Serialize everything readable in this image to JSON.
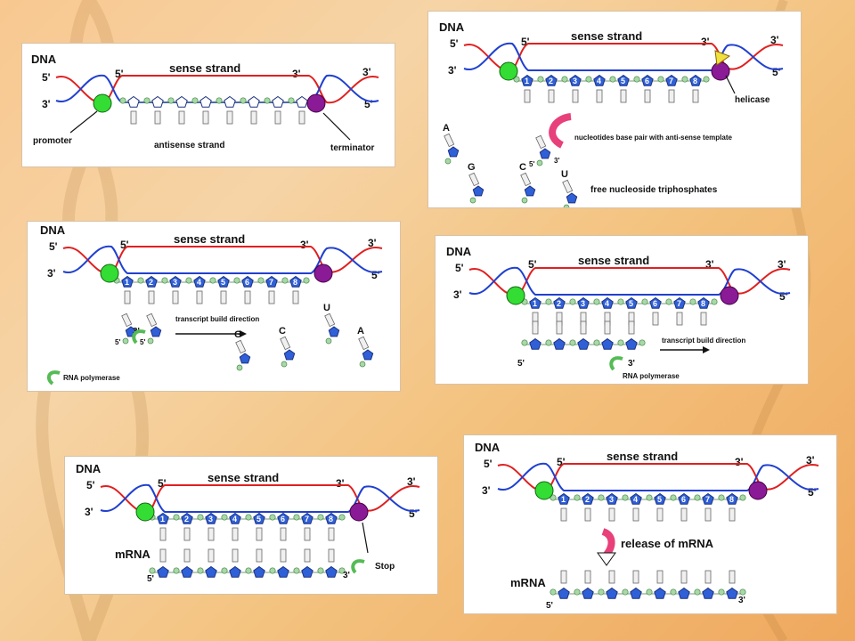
{
  "colors": {
    "sense": "#e02020",
    "antisense": "#2040d0",
    "promoter": "#33dd33",
    "terminator": "#8a1a96",
    "nucleotide": "#3060d8",
    "phosphate": "#a8d8a8",
    "base": "#f0f0f0",
    "polymerase": "#55bb55",
    "helicase": "#f0e040",
    "pink_arrow": "#e8407a"
  },
  "icons": [
    "rna-polymerase-arrow-icon",
    "release-arrow-icon",
    "helicase-icon"
  ],
  "labels": {
    "dna": "DNA",
    "sense": "sense strand",
    "p5": "5'",
    "p3": "3'",
    "promoter": "promoter",
    "terminator": "terminator",
    "antisense": "antisense strand",
    "helicase": "helicase",
    "pairing": "nucleotides base pair with anti-sense template",
    "free": "free nucleoside triphosphates",
    "build": "transcript build direction",
    "rnapol": "RNA polymerase",
    "mrna": "mRNA",
    "stop": "Stop",
    "release": "release of mRNA",
    "nA": "A",
    "nG": "G",
    "nC": "C",
    "nU": "U"
  },
  "numbers": [
    "1",
    "2",
    "3",
    "4",
    "5",
    "6",
    "7",
    "8"
  ]
}
